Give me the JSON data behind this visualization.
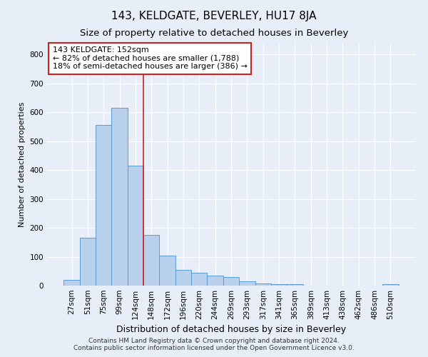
{
  "title": "143, KELDGATE, BEVERLEY, HU17 8JA",
  "subtitle": "Size of property relative to detached houses in Beverley",
  "xlabel": "Distribution of detached houses by size in Beverley",
  "ylabel": "Number of detached properties",
  "footer_line1": "Contains HM Land Registry data © Crown copyright and database right 2024.",
  "footer_line2": "Contains public sector information licensed under the Open Government Licence v3.0.",
  "bar_labels": [
    "27sqm",
    "51sqm",
    "75sqm",
    "99sqm",
    "124sqm",
    "148sqm",
    "172sqm",
    "196sqm",
    "220sqm",
    "244sqm",
    "269sqm",
    "293sqm",
    "317sqm",
    "341sqm",
    "365sqm",
    "389sqm",
    "413sqm",
    "438sqm",
    "462sqm",
    "486sqm",
    "510sqm"
  ],
  "bar_values": [
    20,
    165,
    555,
    615,
    415,
    175,
    105,
    55,
    45,
    35,
    30,
    15,
    8,
    5,
    4,
    0,
    0,
    0,
    0,
    0,
    5
  ],
  "bar_color": "#b8d0ec",
  "bar_edge_color": "#5b9bd5",
  "background_color": "#e8eef8",
  "grid_color": "#ffffff",
  "vline_color": "#cc2222",
  "vline_x_index": 5,
  "annotation_text_line1": "143 KELDGATE: 152sqm",
  "annotation_text_line2": "← 82% of detached houses are smaller (1,788)",
  "annotation_text_line3": "18% of semi-detached houses are larger (386) →",
  "annotation_box_color": "#ffffff",
  "annotation_box_edge_color": "#cc2222",
  "ylim": [
    0,
    840
  ],
  "yticks": [
    0,
    100,
    200,
    300,
    400,
    500,
    600,
    700,
    800
  ],
  "title_fontsize": 11,
  "subtitle_fontsize": 9.5,
  "xlabel_fontsize": 9,
  "ylabel_fontsize": 8,
  "tick_fontsize": 7.5,
  "annotation_fontsize": 8,
  "footer_fontsize": 6.5
}
